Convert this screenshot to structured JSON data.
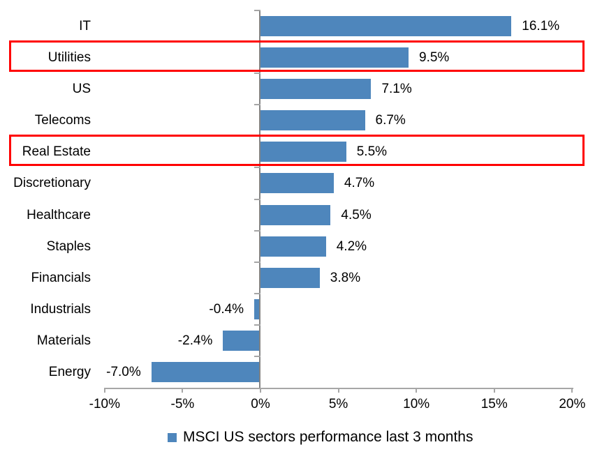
{
  "chart_data": {
    "type": "bar",
    "orientation": "horizontal",
    "categories": [
      "IT",
      "Utilities",
      "US",
      "Telecoms",
      "Real Estate",
      "Discretionary",
      "Healthcare",
      "Staples",
      "Financials",
      "Industrials",
      "Materials",
      "Energy"
    ],
    "values": [
      16.1,
      9.5,
      7.1,
      6.7,
      5.5,
      4.7,
      4.5,
      4.2,
      3.8,
      -0.4,
      -2.4,
      -7.0
    ],
    "value_labels": [
      "16.1%",
      "9.5%",
      "7.1%",
      "6.7%",
      "5.5%",
      "4.7%",
      "4.5%",
      "4.2%",
      "3.8%",
      "-0.4%",
      "-2.4%",
      "-7.0%"
    ],
    "highlighted_categories": [
      "Utilities",
      "Real Estate"
    ],
    "x_tick_values": [
      -10,
      -5,
      0,
      5,
      10,
      15,
      20
    ],
    "x_tick_labels": [
      "-10%",
      "-5%",
      "0%",
      "5%",
      "10%",
      "15%",
      "20%"
    ],
    "xlim": [
      -10,
      20
    ],
    "grid": false,
    "bar_color": "#4E86BC",
    "highlight_box_color": "#FF0000",
    "axis_color": "#A6A6A6",
    "legend": {
      "label": "MSCI US sectors performance last 3 months",
      "position": "bottom",
      "marker_color": "#4E86BC"
    }
  }
}
